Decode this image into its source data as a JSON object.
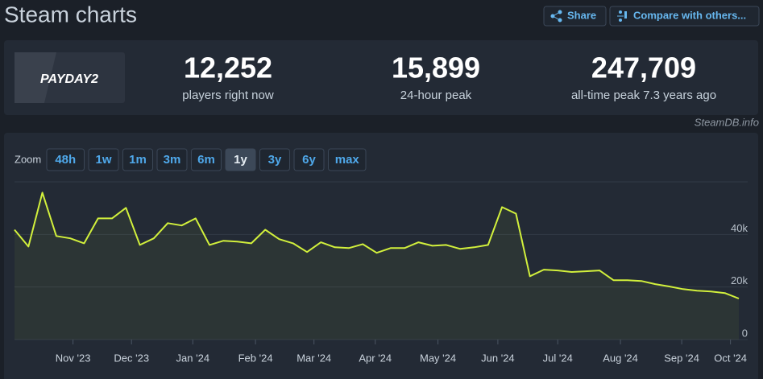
{
  "header": {
    "title": "Steam charts",
    "actions": [
      "Share",
      "Compare with others..."
    ]
  },
  "game": {
    "logo": "PAYDAY2"
  },
  "stats": [
    {
      "value": "12,252",
      "label": "players right now"
    },
    {
      "value": "15,899",
      "label": "24-hour peak"
    },
    {
      "value": "247,709",
      "label": "all-time peak 7.3 years ago"
    }
  ],
  "source": "SteamDB.info",
  "zoom": {
    "label": "Zoom",
    "options": [
      "48h",
      "1w",
      "1m",
      "3m",
      "6m",
      "1y",
      "3y",
      "6y",
      "max"
    ],
    "active": "1y"
  },
  "chart_data": {
    "type": "line",
    "categories": [
      null,
      null,
      null,
      null,
      null,
      null,
      null,
      null,
      null,
      null,
      null,
      null,
      null,
      null,
      null,
      null,
      null,
      null,
      null,
      null,
      null,
      null,
      null,
      null,
      null,
      null,
      null,
      null,
      null,
      null,
      null,
      null,
      null,
      null,
      null,
      null,
      null,
      null,
      null,
      null,
      null,
      null,
      null,
      null,
      null,
      null,
      null,
      null,
      null,
      null,
      null,
      null,
      null
    ],
    "values": [
      41800,
      35400,
      55900,
      39400,
      38500,
      36600,
      46100,
      46100,
      50100,
      36000,
      38500,
      44300,
      43400,
      46100,
      36000,
      37600,
      37300,
      36600,
      41800,
      38200,
      36600,
      33300,
      37000,
      35100,
      34800,
      36300,
      33000,
      34800,
      34800,
      37000,
      35700,
      36000,
      34500,
      35100,
      36000,
      50400,
      47900,
      24100,
      26600,
      26300,
      25700,
      26000,
      26300,
      22600,
      22600,
      22300,
      21100,
      20200,
      19200,
      18600,
      18300,
      17700,
      15600
    ],
    "color": "#d2f03c",
    "ylim": [
      0,
      60000
    ],
    "yticks": [
      {
        "value": 0,
        "label": "0"
      },
      {
        "value": 20000,
        "label": "20k"
      },
      {
        "value": 40000,
        "label": "40k"
      }
    ],
    "xlim": [
      0,
      52
    ],
    "xticks": [
      {
        "value": 4.2,
        "label": "Nov '23"
      },
      {
        "value": 8.4,
        "label": "Dec '23"
      },
      {
        "value": 12.8,
        "label": "Jan '24"
      },
      {
        "value": 17.3,
        "label": "Feb '24"
      },
      {
        "value": 21.5,
        "label": "Mar '24"
      },
      {
        "value": 25.9,
        "label": "Apr '24"
      },
      {
        "value": 30.4,
        "label": "May '24"
      },
      {
        "value": 34.7,
        "label": "Jun '24"
      },
      {
        "value": 39.0,
        "label": "Jul '24"
      },
      {
        "value": 43.5,
        "label": "Aug '24"
      },
      {
        "value": 47.9,
        "label": "Sep '24"
      },
      {
        "value": 51.4,
        "label": "Oct '24"
      }
    ],
    "grid": true
  }
}
